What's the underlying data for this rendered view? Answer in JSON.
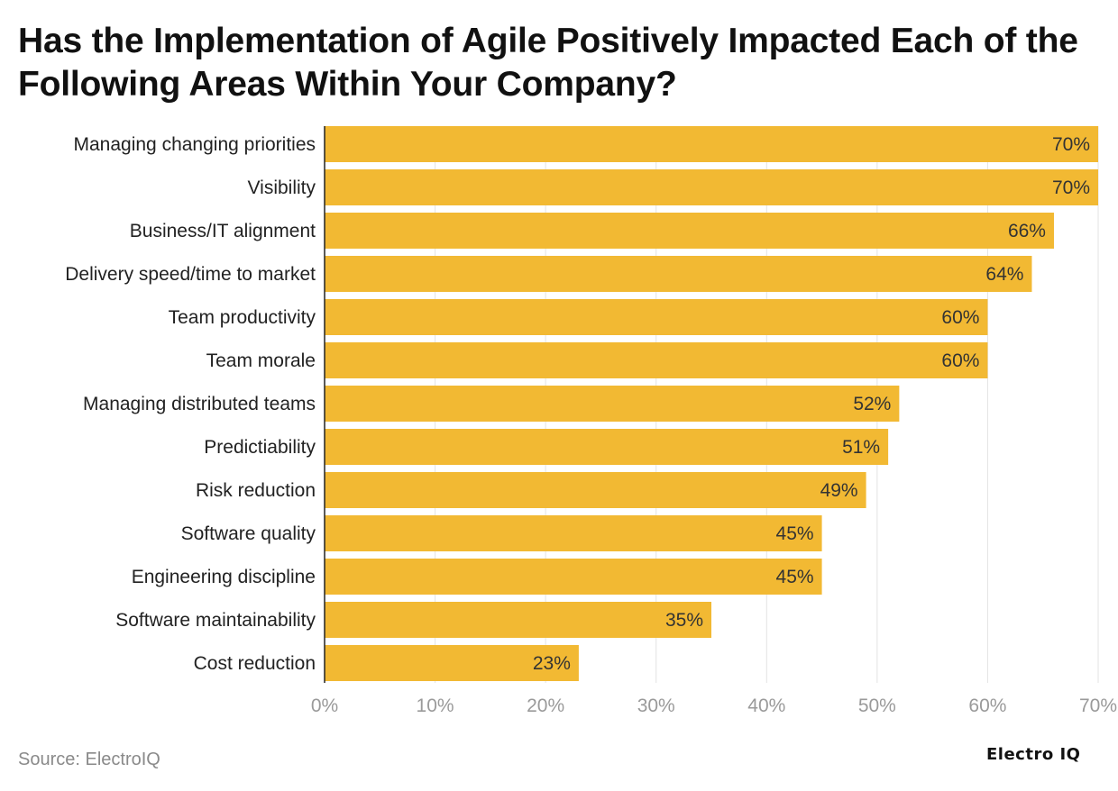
{
  "chart_data": {
    "type": "bar",
    "orientation": "horizontal",
    "title": "Has the Implementation of Agile Positively Impacted Each of the Following Areas Within Your Company?",
    "categories": [
      "Managing changing priorities",
      "Visibility",
      "Business/IT alignment",
      "Delivery speed/time to market",
      "Team productivity",
      "Team morale",
      "Managing distributed teams",
      "Predictiability",
      "Risk reduction",
      "Software quality",
      "Engineering discipline",
      "Software maintainability",
      "Cost reduction"
    ],
    "values": [
      70,
      70,
      66,
      64,
      60,
      60,
      52,
      51,
      49,
      45,
      45,
      35,
      23
    ],
    "value_suffix": "%",
    "xlim": [
      0,
      70
    ],
    "xticks": [
      0,
      10,
      20,
      30,
      40,
      50,
      60,
      70
    ],
    "xtick_labels": [
      "0%",
      "10%",
      "20%",
      "30%",
      "40%",
      "50%",
      "60%",
      "70%"
    ],
    "xlabel": "",
    "ylabel": "",
    "grid": true,
    "bar_color": "#F2B933",
    "source": "Source: ElectroIQ"
  },
  "brand": "Electro IQ"
}
